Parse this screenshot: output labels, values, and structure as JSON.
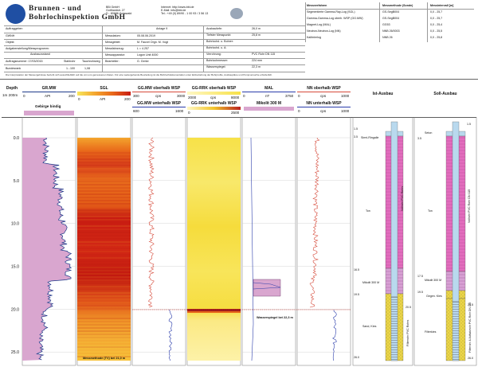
{
  "company": {
    "name_line1": "Brunnen - und",
    "name_line2": "Bohrlochinspektion GmbH",
    "address": [
      "BBi GmbH",
      "Gotthardstr. 27",
      "D - 80686 Grünwald"
    ],
    "contact": [
      "Internet: http://www.bbi.de",
      "E-Mail: info@bbi.de",
      "Tel.: +49 (0) 89/90 - 1 00 93 / 3 56 13"
    ]
  },
  "header_fields": {
    "left_labels": [
      "Auftraggeber:",
      "GWNH",
      "Objekt:",
      "Aufgabenstellung/Messprogramm:",
      "Auftragsnummer: 17/03/2015",
      "Bundesrank"
    ],
    "mid_labels": [
      "Anlage 9",
      "Messdatum:",
      "Messgebiet:",
      "Messfahrzeug:",
      "Messapparatur:",
      "Bearbeiter:"
    ],
    "mid_values": [
      "",
      "05.08.06.2019",
      "M. Fauvel Orgn. M. Vogt",
      "L = 4.257",
      "Logon Unit 4000",
      "G. Gerke"
    ],
    "right_labels": [
      "Ausbautiefe:",
      "Tiefster Messpunkt:",
      "Bohrlochd. u. Bohrer:",
      "Bohrlochd. u. A:",
      "Verrohrung:",
      "Bohrlochmesser:",
      "Wasserspiegel:"
    ],
    "right_values": [
      "26,0 m",
      "25,8 m",
      "",
      "",
      "PVC Rohr DN 115",
      "224 mm",
      "22,3 m"
    ],
    "auszug_label": "Ausbauzustand",
    "stat_labels": [
      "Stahlrohr",
      "Tauchrohrweg"
    ],
    "stat_values": [
      "1...100",
      "1,08"
    ]
  },
  "methods_table": {
    "headers": [
      "Messverfahren",
      "Messmethode (Sonde)",
      "Messintervall [m]"
    ],
    "rows": [
      [
        "Segmentierte Gamma-Ray-Log (SGL)",
        "GS-SegB004",
        "0,0 - 25,7"
      ],
      [
        "Gamma-Gamma-Log oberh. WSP (GG.MW)",
        "GS-SegB004",
        "0,0 - 25,7"
      ],
      [
        "Magnet-Log (MAL)",
        "GG53",
        "0,0 - 25,4"
      ],
      [
        "Neutron-Neutron-Log (NN)",
        "NNB 26/0003",
        "0,0 - 25,5"
      ],
      [
        "Kalibrierlog",
        "NNB 26",
        "0,0 - 25,8"
      ]
    ],
    "remark": "Die Interpretation der Messergebnisse bezieht sich ausschließlich auf die von uns gemessenen Daten. Für eine weitergehende Beurteilung ist die Bohrlochdokumentation unter Einbeziehung der Bohrprofile, Ausbaupläne und Pumpversuche erforderlich."
  },
  "depth_axis": {
    "title": "Depth",
    "unit": "1m 200m",
    "labels": [
      "0.0",
      "5.0",
      "10.0",
      "15.0",
      "20.0",
      "25.0"
    ]
  },
  "tracks": {
    "gr": {
      "title": "GR.MW",
      "unit": "API",
      "min": "0",
      "max": "200",
      "legend": "Gebirge bindig",
      "color": "#1e3a8a"
    },
    "sgl": {
      "title": "SGL",
      "unit": "API",
      "min": "0",
      "max": "200",
      "note": "Messmethode (TV) bei 21,0 m"
    },
    "ggmw": {
      "title": "GG.MW oberhalb WSP",
      "unit": "cps",
      "min": "300",
      "max": "3000",
      "title2": "GG.MW unterhalb WSP",
      "min2": "600",
      "max2": "1600"
    },
    "ggrrk": {
      "title": "GG-RRK oberhalb WSP",
      "unit": "cps",
      "min": "2000",
      "max": "8000",
      "title2": "GG-RRK unterhalb WSP",
      "min2": "0",
      "max2": "2500"
    },
    "mal": {
      "title": "MAL",
      "min": "0",
      "unit": "nT",
      "max": "3750",
      "legend": "Mikolit 300 M",
      "note": "Wasserspiegel bei 22,3 m"
    },
    "nn": {
      "title": "NN oberhalb WSP",
      "unit": "cps",
      "min": "0",
      "max": "1000",
      "title2": "NN unterhalb WSP",
      "min2": "0",
      "max2": "1000"
    },
    "ist": {
      "title": "Ist-Ausbau",
      "labels": [
        "Sirmi-Ringalle",
        "Ton",
        "Mikolit 300 M",
        "Sand, Kies"
      ],
      "pipe_label": "Vollrohr PVC Rohrs",
      "filter_label": "Filterrohr PVC Rohrs",
      "depths": [
        "1.5",
        "3.5",
        "16.5",
        "19.5",
        "20.5",
        "26.0"
      ]
    },
    "soll": {
      "title": "Soll-Ausbau",
      "labels": [
        "Seton",
        "Ton",
        "Mikolit 300 M",
        "Gegen. Kies",
        "Filterkies"
      ],
      "pipe_label": "Vollrohr PVC Rohr DN 115",
      "filter_label": "Filterrohr & Aufsatzrohr PVC Rohr DN 115",
      "depths": [
        "1.5",
        "3.5",
        "17.5",
        "19.5",
        "20.5",
        "26.0"
      ]
    }
  },
  "colors": {
    "gr_fill": "#d9a6cf",
    "sgl_hot": "#c81c12",
    "sgl_warm": "#e8671a",
    "sgl_pale": "#f4a62e",
    "gg_yellow": "#f7e148",
    "gg_pale": "#fdf2a0",
    "gg_band": "#9e1b1b",
    "curve_red": "#d64a3a",
    "curve_blue": "#2a3cab",
    "casing_pink": "#e26dbd",
    "casing_yellow": "#ecd64a",
    "pipe_blue": "#b9d9ee"
  }
}
